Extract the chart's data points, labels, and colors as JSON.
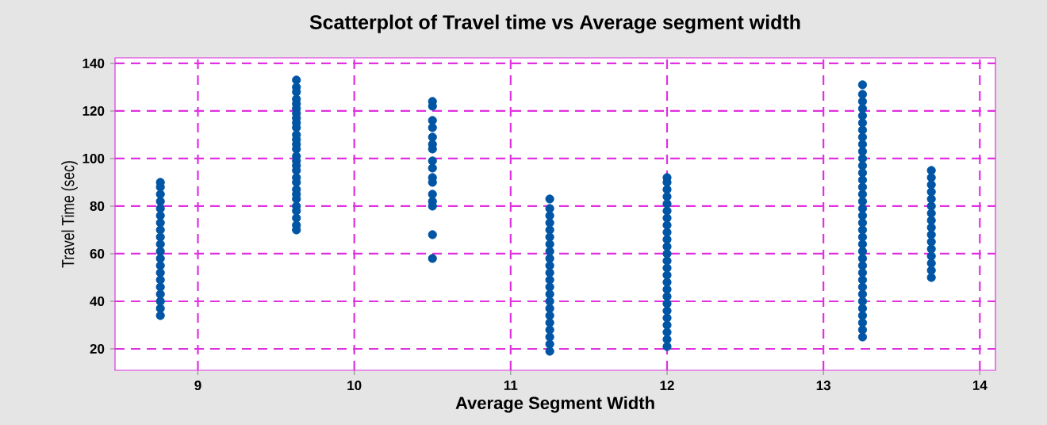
{
  "chart_data": {
    "type": "scatter",
    "title": "Scatterplot of  Travel time vs Average segment width",
    "xlabel": "Average Segment Width",
    "ylabel": "Travel Time (sec)",
    "xlim": [
      8.47,
      14.1
    ],
    "ylim": [
      11,
      142.3
    ],
    "xticks": [
      9,
      10,
      11,
      12,
      13,
      14
    ],
    "yticks": [
      20,
      40,
      60,
      80,
      100,
      120,
      140
    ],
    "grid": true,
    "marker": "circle",
    "series": [
      {
        "color": "#0055a5",
        "x": [
          8.76,
          8.76,
          8.76,
          8.76,
          8.76,
          8.76,
          8.76,
          8.76,
          8.76,
          8.76,
          8.76,
          8.76,
          8.76,
          8.76,
          8.76,
          8.76,
          8.76,
          8.76,
          8.76,
          8.76
        ],
        "values": [
          34,
          37,
          40,
          43,
          46,
          49,
          52,
          55,
          58,
          61,
          64,
          67,
          70,
          73,
          76,
          79,
          82,
          85,
          88,
          90
        ]
      },
      {
        "color": "#0055a5",
        "x": [
          9.63,
          9.63,
          9.63,
          9.63,
          9.63,
          9.63,
          9.63,
          9.63,
          9.63,
          9.63,
          9.63,
          9.63,
          9.63,
          9.63,
          9.63,
          9.63,
          9.63,
          9.63,
          9.63,
          9.63,
          9.63,
          9.63,
          9.63,
          9.63,
          9.63,
          9.63,
          9.63,
          9.63
        ],
        "values": [
          70,
          72,
          75,
          78,
          80,
          83,
          85,
          87,
          90,
          92,
          95,
          97,
          99,
          101,
          104,
          106,
          108,
          110,
          113,
          115,
          117,
          119,
          121,
          123,
          125,
          128,
          130,
          133
        ]
      },
      {
        "color": "#0055a5",
        "x": [
          10.5,
          10.5,
          10.5,
          10.5,
          10.5,
          10.5,
          10.5,
          10.5,
          10.5,
          10.5,
          10.5,
          10.5,
          10.5,
          10.5,
          10.5,
          10.5
        ],
        "values": [
          124,
          122,
          116,
          113,
          109,
          106,
          104,
          99,
          96,
          92,
          90,
          85,
          82,
          80,
          68,
          58
        ]
      },
      {
        "color": "#0055a5",
        "x": [
          11.25,
          11.25,
          11.25,
          11.25,
          11.25,
          11.25,
          11.25,
          11.25,
          11.25,
          11.25,
          11.25,
          11.25,
          11.25,
          11.25,
          11.25,
          11.25,
          11.25,
          11.25,
          11.25,
          11.25,
          11.25,
          11.25
        ],
        "values": [
          19,
          22,
          25,
          28,
          31,
          34,
          37,
          40,
          43,
          46,
          49,
          52,
          55,
          58,
          61,
          64,
          67,
          70,
          73,
          76,
          79,
          83
        ]
      },
      {
        "color": "#0055a5",
        "x": [
          12.0,
          12.0,
          12.0,
          12.0,
          12.0,
          12.0,
          12.0,
          12.0,
          12.0,
          12.0,
          12.0,
          12.0,
          12.0,
          12.0,
          12.0,
          12.0,
          12.0,
          12.0,
          12.0,
          12.0,
          12.0,
          12.0,
          12.0,
          12.0,
          12.0
        ],
        "values": [
          21,
          24,
          27,
          30,
          33,
          36,
          39,
          42,
          45,
          48,
          51,
          54,
          57,
          60,
          63,
          66,
          69,
          72,
          75,
          78,
          81,
          84,
          87,
          90,
          92
        ]
      },
      {
        "color": "#0055a5",
        "x": [
          13.25,
          13.25,
          13.25,
          13.25,
          13.25,
          13.25,
          13.25,
          13.25,
          13.25,
          13.25,
          13.25,
          13.25,
          13.25,
          13.25,
          13.25,
          13.25,
          13.25,
          13.25,
          13.25,
          13.25,
          13.25,
          13.25,
          13.25,
          13.25,
          13.25,
          13.25,
          13.25,
          13.25,
          13.25,
          13.25,
          13.25,
          13.25,
          13.25,
          13.25,
          13.25,
          13.25
        ],
        "values": [
          25,
          28,
          31,
          34,
          37,
          40,
          43,
          46,
          49,
          52,
          55,
          58,
          61,
          64,
          67,
          70,
          73,
          76,
          79,
          82,
          85,
          88,
          91,
          94,
          97,
          100,
          103,
          106,
          109,
          112,
          115,
          118,
          121,
          124,
          127,
          131
        ]
      },
      {
        "color": "#0055a5",
        "x": [
          13.69,
          13.69,
          13.69,
          13.69,
          13.69,
          13.69,
          13.69,
          13.69,
          13.69,
          13.69,
          13.69,
          13.69,
          13.69,
          13.69,
          13.69,
          13.69
        ],
        "values": [
          50,
          53,
          56,
          59,
          62,
          65,
          68,
          71,
          74,
          77,
          80,
          83,
          86,
          89,
          92,
          95
        ]
      }
    ]
  }
}
